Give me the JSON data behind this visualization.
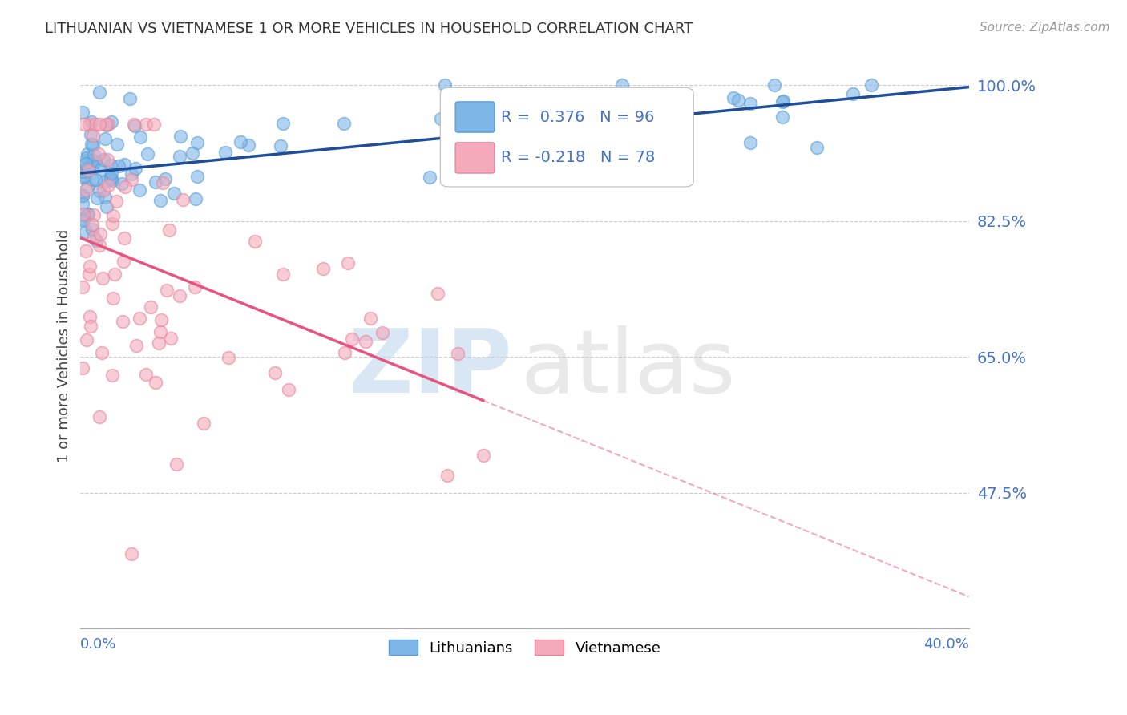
{
  "title": "LITHUANIAN VS VIETNAMESE 1 OR MORE VEHICLES IN HOUSEHOLD CORRELATION CHART",
  "source": "Source: ZipAtlas.com",
  "ylabel": "1 or more Vehicles in Household",
  "xmin": 0.0,
  "xmax": 40.0,
  "ymin": 30.0,
  "ymax": 103.0,
  "yticks": [
    47.5,
    65.0,
    82.5,
    100.0
  ],
  "blue_R": 0.376,
  "blue_N": 96,
  "pink_R": -0.218,
  "pink_N": 78,
  "blue_color": "#7EB6E8",
  "pink_color": "#F4AABB",
  "blue_edge_color": "#5A9FD4",
  "pink_edge_color": "#E8839A",
  "blue_line_color": "#1F4E99",
  "pink_line_color": "#E75480",
  "watermark_zip_color": "#B8D4EA",
  "watermark_atlas_color": "#C8C8C8",
  "legend_label_blue": "Lithuanians",
  "legend_label_pink": "Vietnamese",
  "background_color": "#FFFFFF",
  "grid_color": "#CCCCCC",
  "axis_label_color": "#4472C4",
  "title_color": "#333333"
}
